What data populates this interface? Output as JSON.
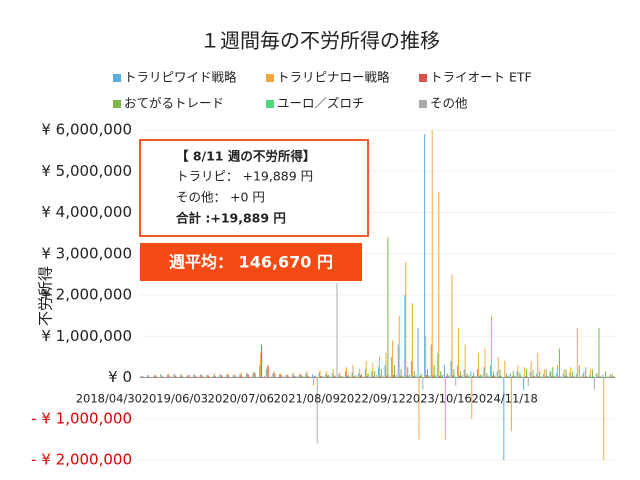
{
  "chart_data": {
    "type": "bar",
    "title": "１週間毎の不労所得の推移",
    "y_label": "不労所得",
    "categories": [
      "2018/04/30",
      null,
      null,
      null,
      null,
      null,
      null,
      null,
      null,
      null,
      "2019/06/03",
      null,
      null,
      null,
      null,
      null,
      null,
      null,
      null,
      null,
      "2020/07/06",
      null,
      null,
      null,
      null,
      null,
      null,
      null,
      null,
      null,
      "2021/08/09",
      null,
      null,
      null,
      null,
      null,
      null,
      null,
      null,
      null,
      "2022/09/12",
      null,
      null,
      null,
      null,
      null,
      null,
      null,
      null,
      null,
      "2023/10/16",
      null,
      null,
      null,
      null,
      null,
      null,
      null,
      null,
      null,
      "2024/11/18",
      null,
      null,
      null,
      null,
      null,
      null,
      null,
      null,
      null,
      null,
      null
    ],
    "series": [
      {
        "name": "トラリピワイド戦略",
        "color": "#5aaee3",
        "values": [
          40000,
          60000,
          50000,
          80000,
          70000,
          90000,
          60000,
          50000,
          70000,
          80000,
          60000,
          50000,
          90000,
          70000,
          60000,
          80000,
          100000,
          120000,
          300000,
          200000,
          100000,
          80000,
          60000,
          90000,
          70000,
          100000,
          80000,
          120000,
          90000,
          100000,
          80000,
          150000,
          120000,
          100000,
          200000,
          150000,
          250000,
          300000,
          500000,
          800000,
          2000000,
          400000,
          1200000,
          5900000,
          800000,
          600000,
          300000,
          400000,
          300000,
          200000,
          150000,
          200000,
          250000,
          300000,
          150000,
          -2000000,
          100000,
          150000,
          -300000,
          120000,
          100000,
          80000,
          150000,
          100000,
          90000,
          120000,
          80000,
          100000,
          60000,
          90000,
          70000,
          50000
        ]
      },
      {
        "name": "トラリピナロー戦略",
        "color": "#f2a93b",
        "values": [
          20000,
          50000,
          80000,
          60000,
          100000,
          70000,
          90000,
          50000,
          80000,
          60000,
          70000,
          100000,
          60000,
          90000,
          80000,
          120000,
          100000,
          150000,
          600000,
          250000,
          150000,
          100000,
          80000,
          120000,
          100000,
          150000,
          -200000,
          180000,
          150000,
          200000,
          120000,
          250000,
          300000,
          200000,
          400000,
          350000,
          500000,
          600000,
          900000,
          1500000,
          2800000,
          1800000,
          -1500000,
          1000000,
          6000000,
          4500000,
          -1500000,
          2500000,
          1200000,
          800000,
          -1000000,
          600000,
          700000,
          1500000,
          500000,
          400000,
          -1300000,
          300000,
          250000,
          400000,
          600000,
          200000,
          150000,
          300000,
          200000,
          250000,
          1200000,
          150000,
          200000,
          100000,
          -2000000,
          80000
        ]
      },
      {
        "name": "トライオート ETF",
        "color": "#d9534f",
        "values": [
          30000,
          20000,
          40000,
          30000,
          50000,
          40000,
          30000,
          60000,
          40000,
          50000,
          40000,
          30000,
          50000,
          60000,
          40000,
          50000,
          70000,
          100000,
          800000,
          300000,
          100000,
          60000,
          50000,
          40000,
          60000,
          50000,
          40000,
          30000,
          50000,
          40000,
          30000,
          40000,
          30000,
          50000,
          40000,
          30000,
          40000,
          50000,
          60000,
          40000,
          50000,
          30000,
          40000,
          60000,
          50000,
          40000,
          30000,
          50000,
          40000,
          30000,
          40000,
          30000,
          20000,
          40000,
          30000,
          20000,
          30000,
          20000,
          30000,
          20000,
          30000,
          20000,
          30000,
          20000,
          30000,
          20000,
          10000,
          20000,
          10000,
          20000,
          10000,
          20000
        ]
      },
      {
        "name": "おてがるトレード",
        "color": "#7ab648",
        "values": [
          0,
          0,
          0,
          0,
          0,
          0,
          0,
          0,
          0,
          0,
          0,
          0,
          0,
          0,
          0,
          0,
          0,
          0,
          0,
          0,
          0,
          0,
          0,
          20000,
          40000,
          30000,
          50000,
          40000,
          60000,
          50000,
          40000,
          60000,
          50000,
          80000,
          100000,
          150000,
          200000,
          3400000,
          300000,
          200000,
          250000,
          150000,
          100000,
          200000,
          300000,
          150000,
          100000,
          200000,
          150000,
          100000,
          120000,
          80000,
          100000,
          150000,
          200000,
          100000,
          150000,
          120000,
          200000,
          180000,
          150000,
          200000,
          250000,
          700000,
          200000,
          150000,
          300000,
          250000,
          200000,
          1200000,
          150000,
          100000
        ]
      },
      {
        "name": "ユーロ／ズロチ",
        "color": "#4fd67a",
        "values": [
          0,
          0,
          0,
          0,
          0,
          0,
          0,
          0,
          0,
          0,
          0,
          0,
          0,
          0,
          0,
          0,
          0,
          0,
          0,
          0,
          0,
          0,
          0,
          0,
          0,
          0,
          0,
          0,
          0,
          0,
          0,
          0,
          0,
          0,
          0,
          0,
          0,
          0,
          20000,
          30000,
          40000,
          30000,
          50000,
          40000,
          30000,
          50000,
          40000,
          30000,
          40000,
          50000,
          30000,
          40000,
          30000,
          50000,
          40000,
          30000,
          40000,
          50000,
          30000,
          40000,
          30000,
          40000,
          50000,
          30000,
          40000,
          30000,
          20000,
          30000,
          40000,
          30000,
          20000,
          30000
        ]
      },
      {
        "name": "その他",
        "color": "#aaaaaa",
        "values": [
          10000,
          20000,
          10000,
          20000,
          30000,
          20000,
          10000,
          20000,
          30000,
          20000,
          20000,
          30000,
          20000,
          10000,
          30000,
          20000,
          30000,
          20000,
          40000,
          30000,
          20000,
          30000,
          20000,
          40000,
          30000,
          20000,
          -1600000,
          30000,
          40000,
          2300000,
          30000,
          40000,
          50000,
          30000,
          40000,
          60000,
          50000,
          40000,
          60000,
          50000,
          80000,
          60000,
          -300000,
          50000,
          70000,
          60000,
          50000,
          -200000,
          60000,
          50000,
          40000,
          60000,
          50000,
          40000,
          30000,
          50000,
          40000,
          30000,
          -200000,
          40000,
          30000,
          40000,
          30000,
          20000,
          30000,
          40000,
          30000,
          20000,
          -300000,
          30000,
          20000,
          30000
        ]
      }
    ],
    "ylim": [
      -2000000,
      6000000
    ],
    "yticks": [
      {
        "value": 6000000,
        "label": "¥ 6,000,000"
      },
      {
        "value": 5000000,
        "label": "¥ 5,000,000"
      },
      {
        "value": 4000000,
        "label": "¥ 4,000,000"
      },
      {
        "value": 3000000,
        "label": "¥ 3,000,000"
      },
      {
        "value": 2000000,
        "label": "¥ 2,000,000"
      },
      {
        "value": 1000000,
        "label": "¥ 1,000,000"
      },
      {
        "value": 0,
        "label": "¥ 0"
      },
      {
        "value": -1000000,
        "label": "- ¥ 1,000,000"
      },
      {
        "value": -2000000,
        "label": "- ¥ 2,000,000"
      }
    ],
    "negative_tick_color": "#e00000",
    "grid": true,
    "info_box": {
      "heading": "【 8/11 週の不労所得】",
      "lines": [
        "トラリピ： +19,889 円",
        "その他： +0 円"
      ],
      "total": "合計 :+19,889 円"
    },
    "average": "週平均： 146,670 円"
  }
}
